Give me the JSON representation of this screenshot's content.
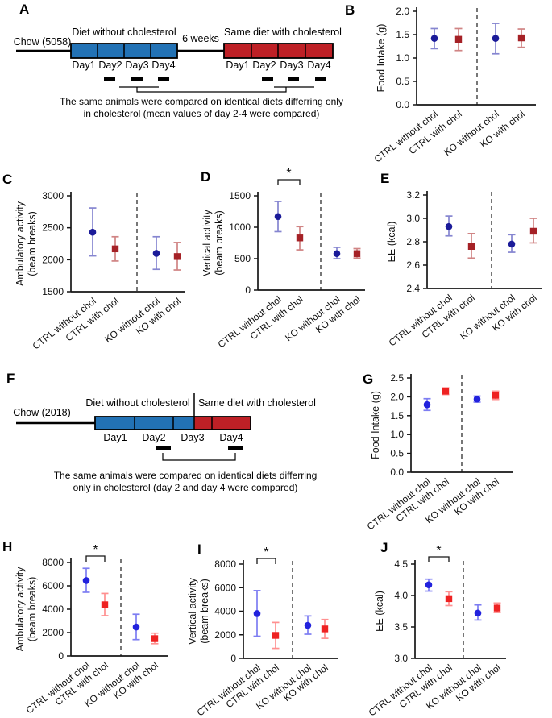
{
  "categories": [
    "CTRL without chol",
    "CTRL with chol",
    "KO without chol",
    "KO with chol"
  ],
  "palette": {
    "diagram_blue": "#2272b5",
    "diagram_red": "#be2026",
    "axis": "#161616",
    "deep": {
      "marker_blue": "#1b1b99",
      "marker_red": "#a52126",
      "error_blue": "#8585d0",
      "error_red": "#d08484"
    },
    "bright": {
      "marker_blue": "#2222dd",
      "marker_red": "#ee2222",
      "error_blue": "#7d7df2",
      "error_red": "#ff9090"
    }
  },
  "diagrams": {
    "A": {
      "letter": "A",
      "chow_label": "Chow (5058)",
      "left_title": "Diet without cholesterol",
      "gap_label": "6 weeks",
      "right_title": "Same diet with cholesterol",
      "left_days": [
        "Day1",
        "Day2",
        "Day3",
        "Day4"
      ],
      "right_days": [
        "Day1",
        "Day2",
        "Day3",
        "Day4"
      ],
      "caption_line1": "The same animals were compared on identical diets differring only",
      "caption_line2": "in cholesterol (mean values of day 2-4 were compared)"
    },
    "F": {
      "letter": "F",
      "chow_label": "Chow (2018)",
      "left_title": "Diet without cholesterol",
      "right_title": "Same diet with cholesterol",
      "days": [
        "Day1",
        "Day2",
        "Day3",
        "Day4"
      ],
      "caption_line1": "The same animals were compared on identical diets differring",
      "caption_line2": "only in cholesterol (day 2 and day 4 were compared)"
    }
  },
  "chart_data": [
    {
      "panel": "B",
      "letter": "B",
      "type": "scatter",
      "style": "deep",
      "ylabel": [
        "Food Intake (g)"
      ],
      "ylim": [
        0,
        2
      ],
      "yticks": [
        0,
        0.5,
        1,
        1.5,
        2
      ],
      "ydecimals": 1,
      "sig": null,
      "categories": [
        "CTRL without chol",
        "CTRL with chol",
        "KO without chol",
        "KO with chol"
      ],
      "points": [
        {
          "y": 1.42,
          "lo": 1.2,
          "hi": 1.63
        },
        {
          "y": 1.4,
          "lo": 1.16,
          "hi": 1.63
        },
        {
          "y": 1.42,
          "lo": 1.09,
          "hi": 1.74
        },
        {
          "y": 1.43,
          "lo": 1.23,
          "hi": 1.62
        }
      ]
    },
    {
      "panel": "C",
      "letter": "C",
      "type": "scatter",
      "style": "deep",
      "ylabel": [
        "Ambulatory activity",
        "(beam breaks)"
      ],
      "ylim": [
        1500,
        3000
      ],
      "yticks": [
        1500,
        2000,
        2500,
        3000
      ],
      "ydecimals": 0,
      "sig": null,
      "categories": [
        "CTRL without chol",
        "CTRL with chol",
        "KO without chol",
        "KO with chol"
      ],
      "points": [
        {
          "y": 2430,
          "lo": 2060,
          "hi": 2810
        },
        {
          "y": 2170,
          "lo": 1980,
          "hi": 2360
        },
        {
          "y": 2100,
          "lo": 1850,
          "hi": 2360
        },
        {
          "y": 2050,
          "lo": 1840,
          "hi": 2270
        }
      ]
    },
    {
      "panel": "D",
      "letter": "D",
      "type": "scatter",
      "style": "deep",
      "ylabel": [
        "Vertical activity",
        "(beam breaks)"
      ],
      "ylim": [
        0,
        1500
      ],
      "yticks": [
        0,
        500,
        1000,
        1500
      ],
      "ydecimals": 0,
      "sig": "*",
      "categories": [
        "CTRL without chol",
        "CTRL with chol",
        "KO without chol",
        "KO with chol"
      ],
      "points": [
        {
          "y": 1170,
          "lo": 930,
          "hi": 1410
        },
        {
          "y": 830,
          "lo": 640,
          "hi": 1010
        },
        {
          "y": 580,
          "lo": 500,
          "hi": 680
        },
        {
          "y": 580,
          "lo": 510,
          "hi": 660
        }
      ]
    },
    {
      "panel": "E",
      "letter": "E",
      "type": "scatter",
      "style": "deep",
      "ylabel": [
        "EE (kcal)"
      ],
      "ylim": [
        2.4,
        3.2
      ],
      "yticks": [
        2.4,
        2.6,
        2.8,
        3.0,
        3.2
      ],
      "ydecimals": 1,
      "sig": null,
      "categories": [
        "CTRL without chol",
        "CTRL with chol",
        "KO without chol",
        "KO with chol"
      ],
      "points": [
        {
          "y": 2.93,
          "lo": 2.85,
          "hi": 3.02
        },
        {
          "y": 2.76,
          "lo": 2.66,
          "hi": 2.87
        },
        {
          "y": 2.78,
          "lo": 2.71,
          "hi": 2.86
        },
        {
          "y": 2.89,
          "lo": 2.79,
          "hi": 3.0
        }
      ]
    },
    {
      "panel": "G",
      "letter": "G",
      "type": "scatter",
      "style": "bright",
      "ylabel": [
        "Food Intake (g)"
      ],
      "ylim": [
        0,
        2.5
      ],
      "yticks": [
        0,
        0.5,
        1,
        1.5,
        2,
        2.5
      ],
      "ydecimals": 1,
      "sig": null,
      "categories": [
        "CTRL without chol",
        "CTRL with chol",
        "KO without chol",
        "KO with chol"
      ],
      "points": [
        {
          "y": 1.79,
          "lo": 1.64,
          "hi": 1.95
        },
        {
          "y": 2.15,
          "lo": 2.06,
          "hi": 2.24
        },
        {
          "y": 1.94,
          "lo": 1.86,
          "hi": 2.02
        },
        {
          "y": 2.04,
          "lo": 1.93,
          "hi": 2.15
        }
      ]
    },
    {
      "panel": "H",
      "letter": "H",
      "type": "scatter",
      "style": "bright",
      "ylabel": [
        "Ambulatory activity",
        "(beam breaks)"
      ],
      "ylim": [
        0,
        8000
      ],
      "yticks": [
        0,
        2000,
        4000,
        6000,
        8000
      ],
      "ydecimals": 0,
      "sig": "*",
      "categories": [
        "CTRL without chol",
        "CTRL with chol",
        "KO without chol",
        "KO with chol"
      ],
      "points": [
        {
          "y": 6450,
          "lo": 5450,
          "hi": 7500
        },
        {
          "y": 4380,
          "lo": 3450,
          "hi": 5350
        },
        {
          "y": 2480,
          "lo": 1400,
          "hi": 3570
        },
        {
          "y": 1480,
          "lo": 1050,
          "hi": 1950
        }
      ]
    },
    {
      "panel": "I",
      "letter": "I",
      "type": "scatter",
      "style": "bright",
      "ylabel": [
        "Vertical activity",
        "(beam breaks)"
      ],
      "ylim": [
        0,
        8000
      ],
      "yticks": [
        0,
        2000,
        4000,
        6000,
        8000
      ],
      "ydecimals": 0,
      "sig": "*",
      "categories": [
        "CTRL without chol",
        "CTRL with chol",
        "KO without chol",
        "KO with chol"
      ],
      "points": [
        {
          "y": 3800,
          "lo": 1880,
          "hi": 5750
        },
        {
          "y": 1950,
          "lo": 850,
          "hi": 3050
        },
        {
          "y": 2800,
          "lo": 2050,
          "hi": 3600
        },
        {
          "y": 2500,
          "lo": 1700,
          "hi": 3300
        }
      ]
    },
    {
      "panel": "J",
      "letter": "J",
      "type": "scatter",
      "style": "bright",
      "ylabel": [
        "EE (kcal)"
      ],
      "ylim": [
        3.0,
        4.5
      ],
      "yticks": [
        3.0,
        3.5,
        4.0,
        4.5
      ],
      "ydecimals": 1,
      "sig": "*",
      "categories": [
        "CTRL without chol",
        "CTRL with chol",
        "KO without chol",
        "KO with chol"
      ],
      "points": [
        {
          "y": 4.17,
          "lo": 4.07,
          "hi": 4.26
        },
        {
          "y": 3.95,
          "lo": 3.84,
          "hi": 4.06
        },
        {
          "y": 3.72,
          "lo": 3.61,
          "hi": 3.85
        },
        {
          "y": 3.8,
          "lo": 3.73,
          "hi": 3.88
        }
      ]
    }
  ]
}
